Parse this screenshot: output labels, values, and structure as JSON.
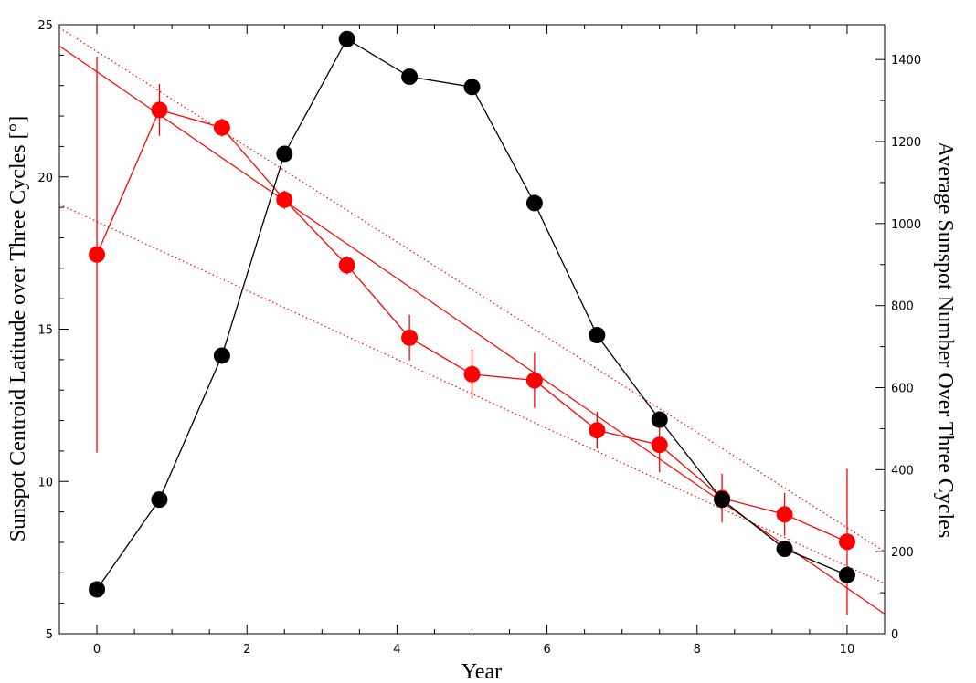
{
  "chart_data": {
    "type": "scatter",
    "xlabel": "Year",
    "ylabel_left": "Sunspot Centroid Latitude over Three Cycles [°]",
    "ylabel_right": "Average Sunspot Number Over Three Cycles",
    "xlim": [
      -0.5,
      10.5
    ],
    "ylim_left": [
      5,
      25
    ],
    "ylim_right": [
      0,
      1485
    ],
    "x_ticks": [
      0,
      2,
      4,
      6,
      8,
      10
    ],
    "y_left_ticks": [
      5,
      10,
      15,
      20,
      25
    ],
    "y_right_ticks": [
      0,
      200,
      400,
      600,
      800,
      1000,
      1200,
      1400
    ],
    "grid": false,
    "colors": {
      "latitude": "#ff0000",
      "sunspot_number": "#000000"
    },
    "series": [
      {
        "axis": "left",
        "color": "#ff0000",
        "marker": "circle",
        "x": [
          0,
          0.833,
          1.667,
          2.5,
          3.333,
          4.167,
          5.0,
          5.833,
          6.667,
          7.5,
          8.333,
          9.167,
          10.0
        ],
        "y": [
          17.45,
          22.2,
          21.62,
          19.25,
          17.1,
          14.72,
          13.52,
          13.32,
          11.68,
          11.2,
          9.45,
          8.92,
          8.02
        ],
        "y_err": [
          6.5,
          0.85,
          0.3,
          0.3,
          0.3,
          0.75,
          0.8,
          0.9,
          0.6,
          0.9,
          0.8,
          0.7,
          2.4
        ]
      },
      {
        "axis": "right",
        "color": "#000000",
        "marker": "circle",
        "x": [
          0,
          0.833,
          1.667,
          2.5,
          3.333,
          4.167,
          5.0,
          5.833,
          6.667,
          7.5,
          8.333,
          9.167,
          10.0
        ],
        "y": [
          108,
          327,
          678,
          1170,
          1450,
          1358,
          1333,
          1050,
          728,
          522,
          327,
          207,
          143
        ]
      }
    ],
    "fits": [
      {
        "axis": "left",
        "style": "solid",
        "color": "#ff0000",
        "x": [
          -0.5,
          10.5
        ],
        "y": [
          24.3,
          5.65
        ]
      },
      {
        "axis": "left",
        "style": "dotted",
        "color": "#ff0000",
        "x": [
          -0.5,
          10.5
        ],
        "y": [
          24.9,
          7.7
        ]
      },
      {
        "axis": "left",
        "style": "dotted",
        "color": "#ff0000",
        "x": [
          -0.5,
          10.5
        ],
        "y": [
          19.1,
          6.65
        ]
      }
    ]
  }
}
